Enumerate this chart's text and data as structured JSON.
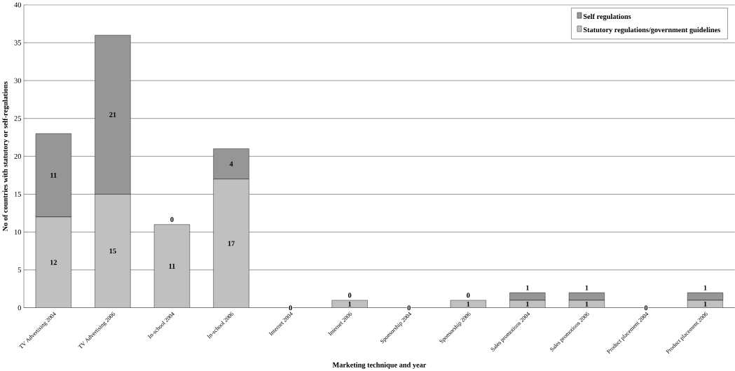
{
  "chart_data": {
    "type": "bar",
    "stacked": true,
    "xlabel": "Marketing technique and year",
    "ylabel": "No of countries with statutory or self-regulations",
    "categories": [
      "TV Advertising 2004",
      "TV Advertising 2006",
      "In-school 2004",
      "In-school 2006",
      "Internet 2004",
      "Internet 2006",
      "Sponsorship 2004",
      "Sponsorship 2006",
      "Sales promotions 2004",
      "Sales promotions 2006",
      "Product placement 2004",
      "Product placement 2006"
    ],
    "series": [
      {
        "name": "Statutory regulations/government guidelines",
        "color": "#c0c0c0",
        "values": [
          12,
          15,
          11,
          17,
          0,
          1,
          0,
          1,
          1,
          1,
          0,
          1
        ],
        "value_labels": [
          "12",
          "15",
          "11",
          "17",
          "0",
          "1",
          "0",
          "1",
          "1",
          "1",
          "0",
          "1"
        ]
      },
      {
        "name": "Self regulations",
        "color": "#969696",
        "values": [
          11,
          21,
          0,
          4,
          0,
          0,
          0,
          0,
          1,
          1,
          0,
          1
        ],
        "value_labels": [
          "11",
          "21",
          "0",
          "4",
          null,
          "0",
          null,
          "0",
          "1",
          "1",
          null,
          "1"
        ]
      }
    ],
    "ylim": [
      0,
      40
    ],
    "yticks": [
      0,
      5,
      10,
      15,
      20,
      25,
      30,
      35,
      40
    ],
    "grid": "y",
    "legend": "top right"
  }
}
